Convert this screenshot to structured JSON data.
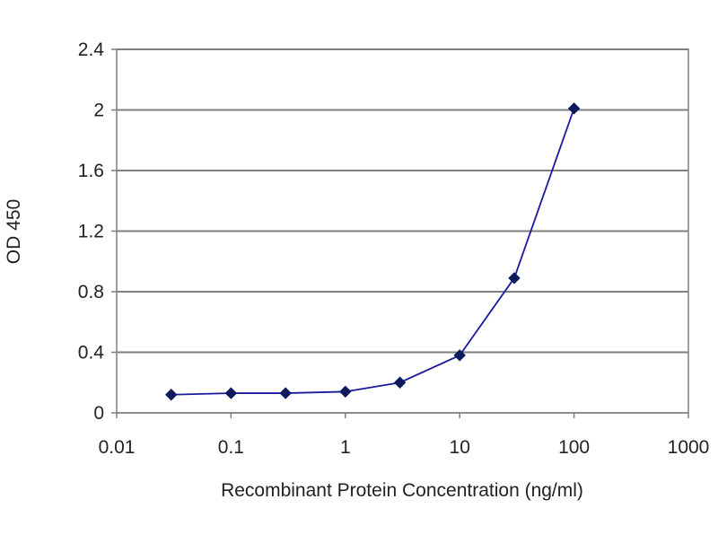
{
  "chart_data": {
    "type": "scatter",
    "title": "",
    "xlabel": "Recombinant Protein Concentration (ng/ml)",
    "ylabel": "OD 450",
    "xscale": "log",
    "xlim": [
      0.01,
      1000
    ],
    "ylim": [
      0,
      2.4
    ],
    "x_ticks": [
      "0.01",
      "0.1",
      "1",
      "10",
      "100",
      "1000"
    ],
    "x_tick_values": [
      0.01,
      0.1,
      1,
      10,
      100,
      1000
    ],
    "y_ticks": [
      "0",
      "0.4",
      "0.8",
      "1.2",
      "1.6",
      "2",
      "2.4"
    ],
    "y_tick_values": [
      0,
      0.4,
      0.8,
      1.2,
      1.6,
      2.0,
      2.4
    ],
    "grid": "horizontal",
    "legend": "none",
    "series": [
      {
        "x": [
          0.03,
          0.1,
          0.3,
          1,
          3,
          10,
          30,
          100
        ],
        "y": [
          0.12,
          0.13,
          0.13,
          0.14,
          0.2,
          0.38,
          0.89,
          2.01
        ],
        "connected": true,
        "color": "#1a1aa0",
        "marker": "diamond"
      }
    ],
    "colors": {
      "plot_background": "#ffffff",
      "gridline": "#7f7f7f",
      "axis": "#7f7f7f",
      "series": "#1a1aa0",
      "marker": "#0d1a5c"
    }
  }
}
